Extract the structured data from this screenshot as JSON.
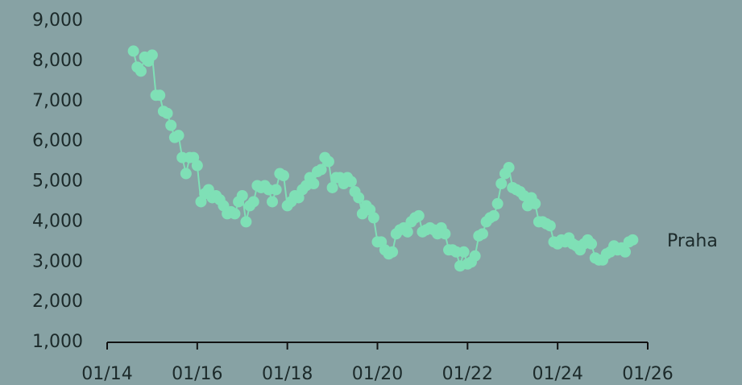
{
  "chart_data": {
    "type": "line",
    "x": [
      "08/14",
      "09/14",
      "10/14",
      "11/14",
      "12/14",
      "01/15",
      "02/15",
      "03/15",
      "04/15",
      "05/15",
      "06/15",
      "07/15",
      "08/15",
      "09/15",
      "10/15",
      "11/15",
      "12/15",
      "01/16",
      "02/16",
      "03/16",
      "04/16",
      "05/16",
      "06/16",
      "07/16",
      "08/16",
      "09/16",
      "10/16",
      "11/16",
      "12/16",
      "01/17",
      "02/17",
      "03/17",
      "04/17",
      "05/17",
      "06/17",
      "07/17",
      "08/17",
      "09/17",
      "10/17",
      "11/17",
      "12/17",
      "01/18",
      "02/18",
      "03/18",
      "04/18",
      "05/18",
      "06/18",
      "07/18",
      "08/18",
      "09/18",
      "10/18",
      "11/18",
      "12/18",
      "01/19",
      "02/19",
      "03/19",
      "04/19",
      "05/19",
      "06/19",
      "07/19",
      "08/19",
      "09/19",
      "10/19",
      "11/19",
      "12/19",
      "01/20",
      "02/20",
      "03/20",
      "04/20",
      "05/20",
      "06/20",
      "07/20",
      "08/20",
      "09/20",
      "10/20",
      "11/20",
      "12/20",
      "01/21",
      "02/21",
      "03/21",
      "04/21",
      "05/21",
      "06/21",
      "07/21",
      "08/21",
      "09/21",
      "10/21",
      "11/21",
      "12/21",
      "01/22",
      "02/22",
      "03/22",
      "04/22",
      "05/22",
      "06/22",
      "07/22",
      "08/22",
      "09/22",
      "10/22",
      "11/22",
      "12/22",
      "01/23",
      "02/23",
      "03/23",
      "04/23",
      "05/23",
      "06/23",
      "07/23",
      "08/23",
      "09/23",
      "10/23",
      "11/23",
      "12/23",
      "01/24",
      "02/24",
      "03/24",
      "04/24",
      "05/24",
      "06/24",
      "07/24",
      "08/24",
      "09/24",
      "10/24",
      "11/24",
      "12/24",
      "01/25",
      "02/25",
      "03/25",
      "04/25",
      "05/25",
      "06/25",
      "07/25",
      "08/25",
      "09/25"
    ],
    "series": [
      {
        "name": "Praha",
        "color": "#7fe0b6",
        "values": [
          8250,
          7850,
          7750,
          8100,
          8000,
          8150,
          7150,
          7150,
          6750,
          6700,
          6400,
          6100,
          6150,
          5600,
          5200,
          5600,
          5600,
          5400,
          4500,
          4700,
          4800,
          4600,
          4650,
          4550,
          4400,
          4200,
          4250,
          4200,
          4500,
          4650,
          4000,
          4400,
          4500,
          4900,
          4850,
          4900,
          4800,
          4500,
          4800,
          5200,
          5150,
          4400,
          4500,
          4650,
          4600,
          4800,
          4900,
          5100,
          4950,
          5250,
          5300,
          5600,
          5500,
          4850,
          5100,
          5100,
          4950,
          5100,
          5000,
          4750,
          4600,
          4200,
          4400,
          4300,
          4100,
          3500,
          3500,
          3300,
          3200,
          3250,
          3700,
          3800,
          3850,
          3750,
          4000,
          4100,
          4150,
          3750,
          3800,
          3850,
          3800,
          3700,
          3850,
          3700,
          3300,
          3300,
          3250,
          2900,
          3250,
          2950,
          3000,
          3150,
          3650,
          3700,
          4000,
          4100,
          4150,
          4450,
          4950,
          5200,
          5350,
          4850,
          4800,
          4750,
          4650,
          4400,
          4600,
          4450,
          4000,
          4000,
          3950,
          3900,
          3500,
          3450,
          3550,
          3500,
          3600,
          3450,
          3400,
          3300,
          3450,
          3550,
          3450,
          3100,
          3050,
          3050,
          3200,
          3250,
          3400,
          3300,
          3350,
          3250,
          3500,
          3550
        ]
      }
    ],
    "xlim": [
      "01/14",
      "01/26"
    ],
    "xticks": [
      "01/14",
      "01/16",
      "01/18",
      "01/20",
      "01/22",
      "01/24",
      "01/26"
    ],
    "ylim": [
      1000,
      9000
    ],
    "yticks": [
      {
        "value": 1000,
        "label": "1,000"
      },
      {
        "value": 2000,
        "label": "2,000"
      },
      {
        "value": 3000,
        "label": "3,000"
      },
      {
        "value": 4000,
        "label": "4,000"
      },
      {
        "value": 5000,
        "label": "5,000"
      },
      {
        "value": 6000,
        "label": "6,000"
      },
      {
        "value": 7000,
        "label": "7,000"
      },
      {
        "value": 8000,
        "label": "8,000"
      },
      {
        "value": 9000,
        "label": "9,000"
      }
    ]
  }
}
